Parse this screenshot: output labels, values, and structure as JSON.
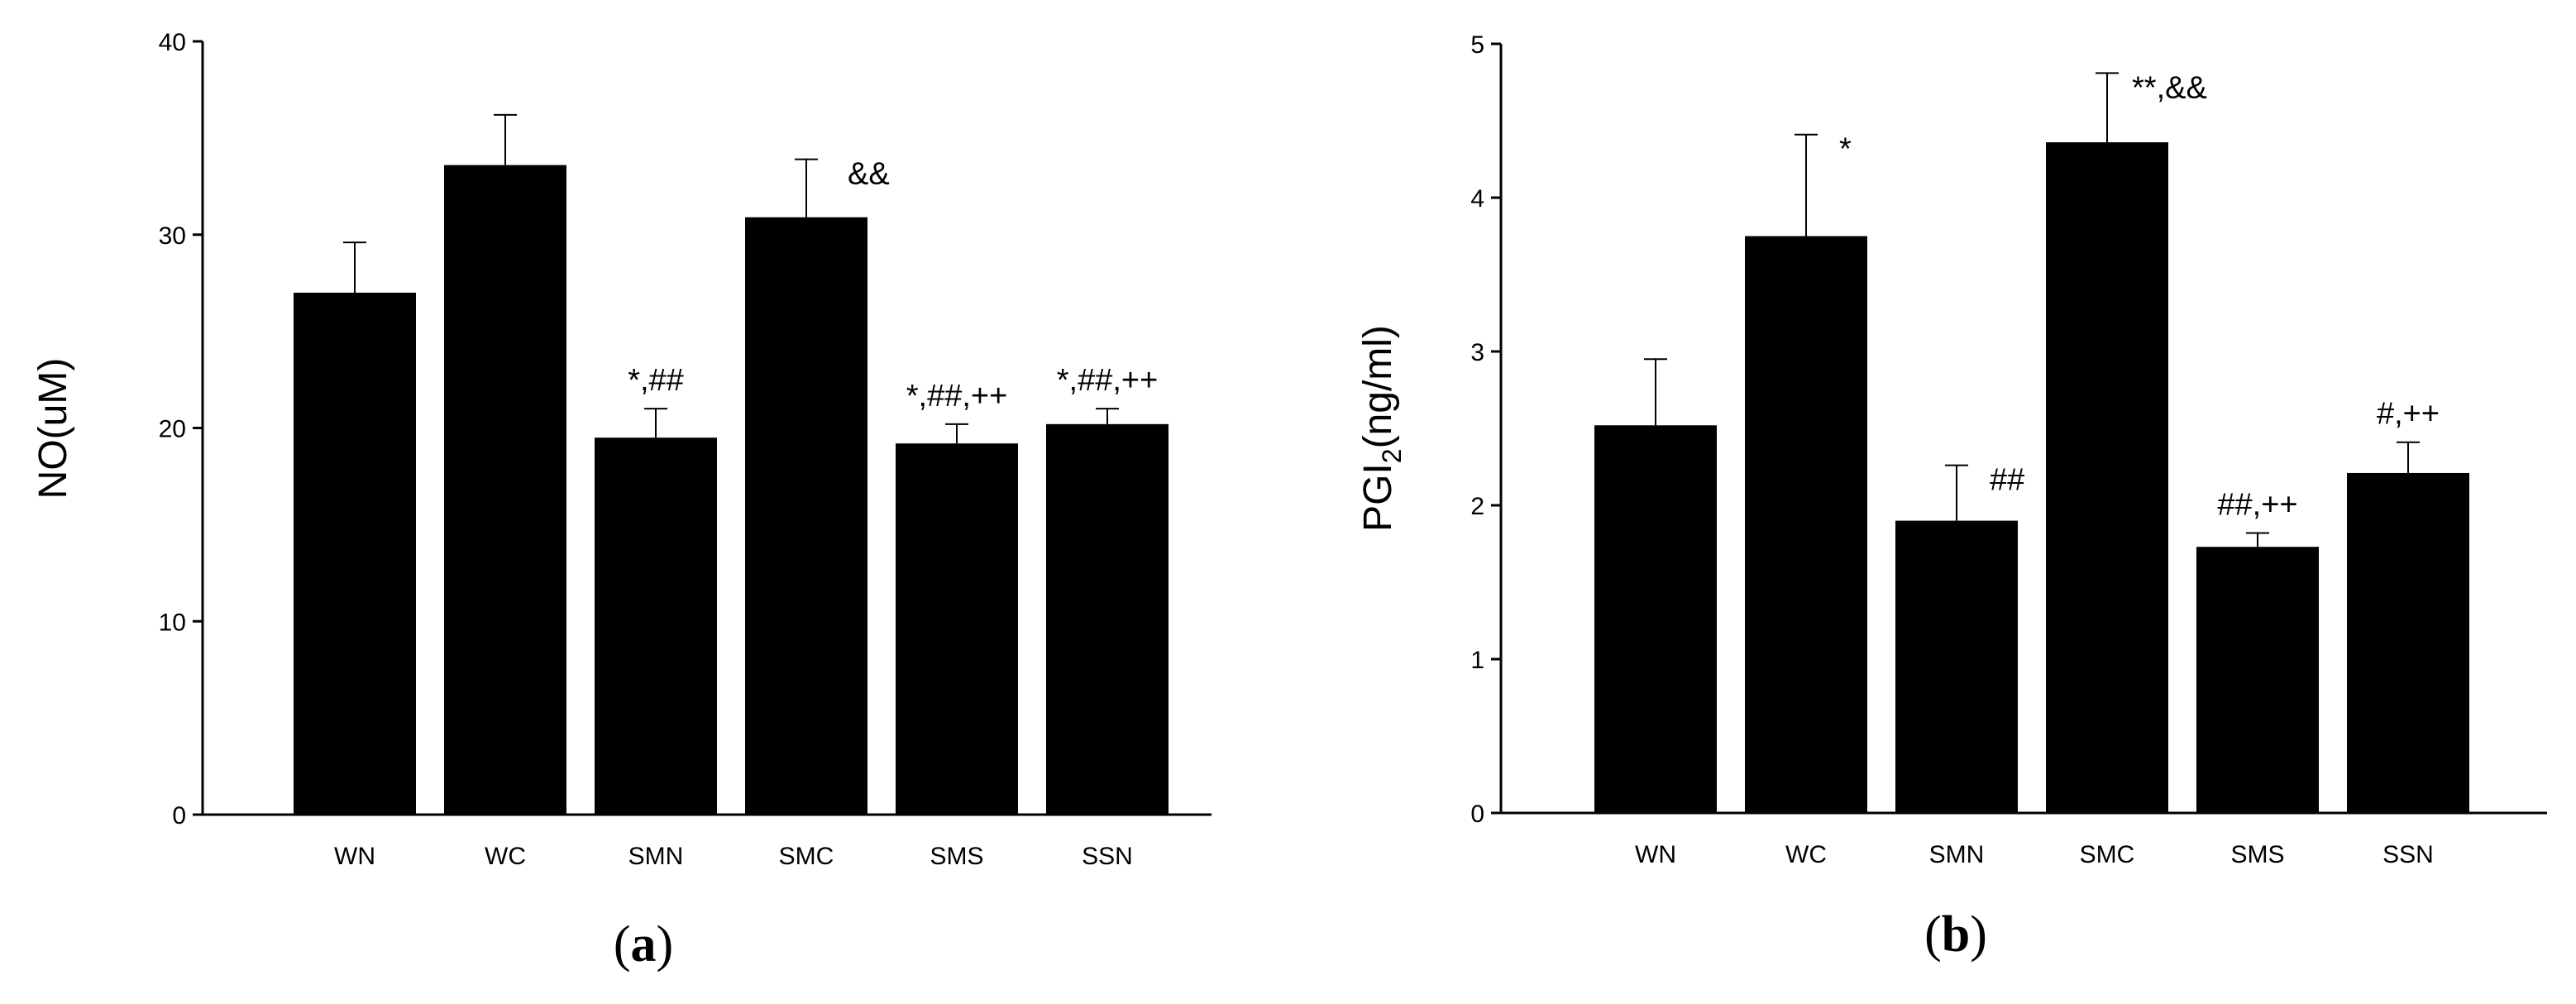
{
  "chart_data": [
    {
      "type": "bar",
      "panel_label": "a",
      "ylabel": "NO(uM)",
      "ylim": [
        0,
        40
      ],
      "yticks": [
        0,
        10,
        20,
        30,
        40
      ],
      "categories": [
        "WN",
        "WC",
        "SMN",
        "SMC",
        "SMS",
        "SSN"
      ],
      "values": [
        27.0,
        33.6,
        19.5,
        30.9,
        19.2,
        20.2
      ],
      "errors": [
        2.6,
        2.6,
        1.5,
        3.0,
        1.0,
        0.8
      ],
      "annotations": [
        "",
        "",
        "*,##",
        "&&",
        "*,##,++",
        "*,##,++"
      ],
      "bar_color": "#000000"
    },
    {
      "type": "bar",
      "panel_label": "b",
      "ylabel_main": "PGI",
      "ylabel_sub": "2",
      "ylabel_rest": "(ng/ml)",
      "ylim": [
        0,
        5
      ],
      "yticks": [
        0,
        1,
        2,
        3,
        4,
        5
      ],
      "categories": [
        "WN",
        "WC",
        "SMN",
        "SMC",
        "SMS",
        "SSN"
      ],
      "values": [
        2.52,
        3.75,
        1.9,
        4.36,
        1.73,
        2.21
      ],
      "errors": [
        0.43,
        0.66,
        0.36,
        0.45,
        0.09,
        0.2
      ],
      "annotations": [
        "",
        "*",
        "##",
        "**,&&",
        "##,++",
        "#,++"
      ],
      "bar_color": "#000000"
    }
  ]
}
